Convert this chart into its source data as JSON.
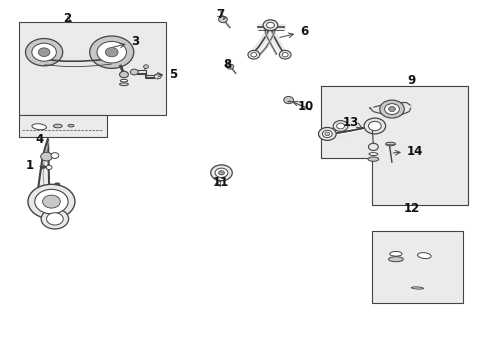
{
  "bg_color": "#ffffff",
  "lc": "#444444",
  "gray1": "#c8c8c8",
  "gray2": "#e8e8e8",
  "gray3": "#999999",
  "box_fill": "#ebebeb",
  "figsize": [
    4.9,
    3.6
  ],
  "dpi": 100,
  "labels": {
    "1": [
      0.125,
      0.535,
      0.16,
      0.535,
      "left"
    ],
    "2": [
      0.135,
      0.935,
      0.155,
      0.91,
      "center"
    ],
    "3": [
      0.28,
      0.885,
      0.248,
      0.878,
      "left"
    ],
    "4": [
      0.082,
      0.628,
      0.082,
      0.618,
      "center"
    ],
    "5": [
      0.355,
      0.79,
      0.325,
      0.787,
      "left"
    ],
    "6": [
      0.61,
      0.92,
      0.578,
      0.905,
      "left"
    ],
    "7": [
      0.453,
      0.945,
      0.458,
      0.938,
      "center"
    ],
    "8": [
      0.468,
      0.805,
      0.472,
      0.815,
      "center"
    ],
    "9": [
      0.838,
      0.782,
      0.838,
      0.782,
      "center"
    ],
    "10": [
      0.61,
      0.695,
      0.604,
      0.708,
      "left"
    ],
    "11": [
      0.45,
      0.505,
      0.45,
      0.516,
      "center"
    ],
    "12": [
      0.84,
      0.418,
      0.84,
      0.418,
      "center"
    ],
    "13": [
      0.692,
      0.648,
      0.672,
      0.638,
      "left"
    ],
    "14": [
      0.83,
      0.575,
      0.802,
      0.572,
      "left"
    ]
  }
}
